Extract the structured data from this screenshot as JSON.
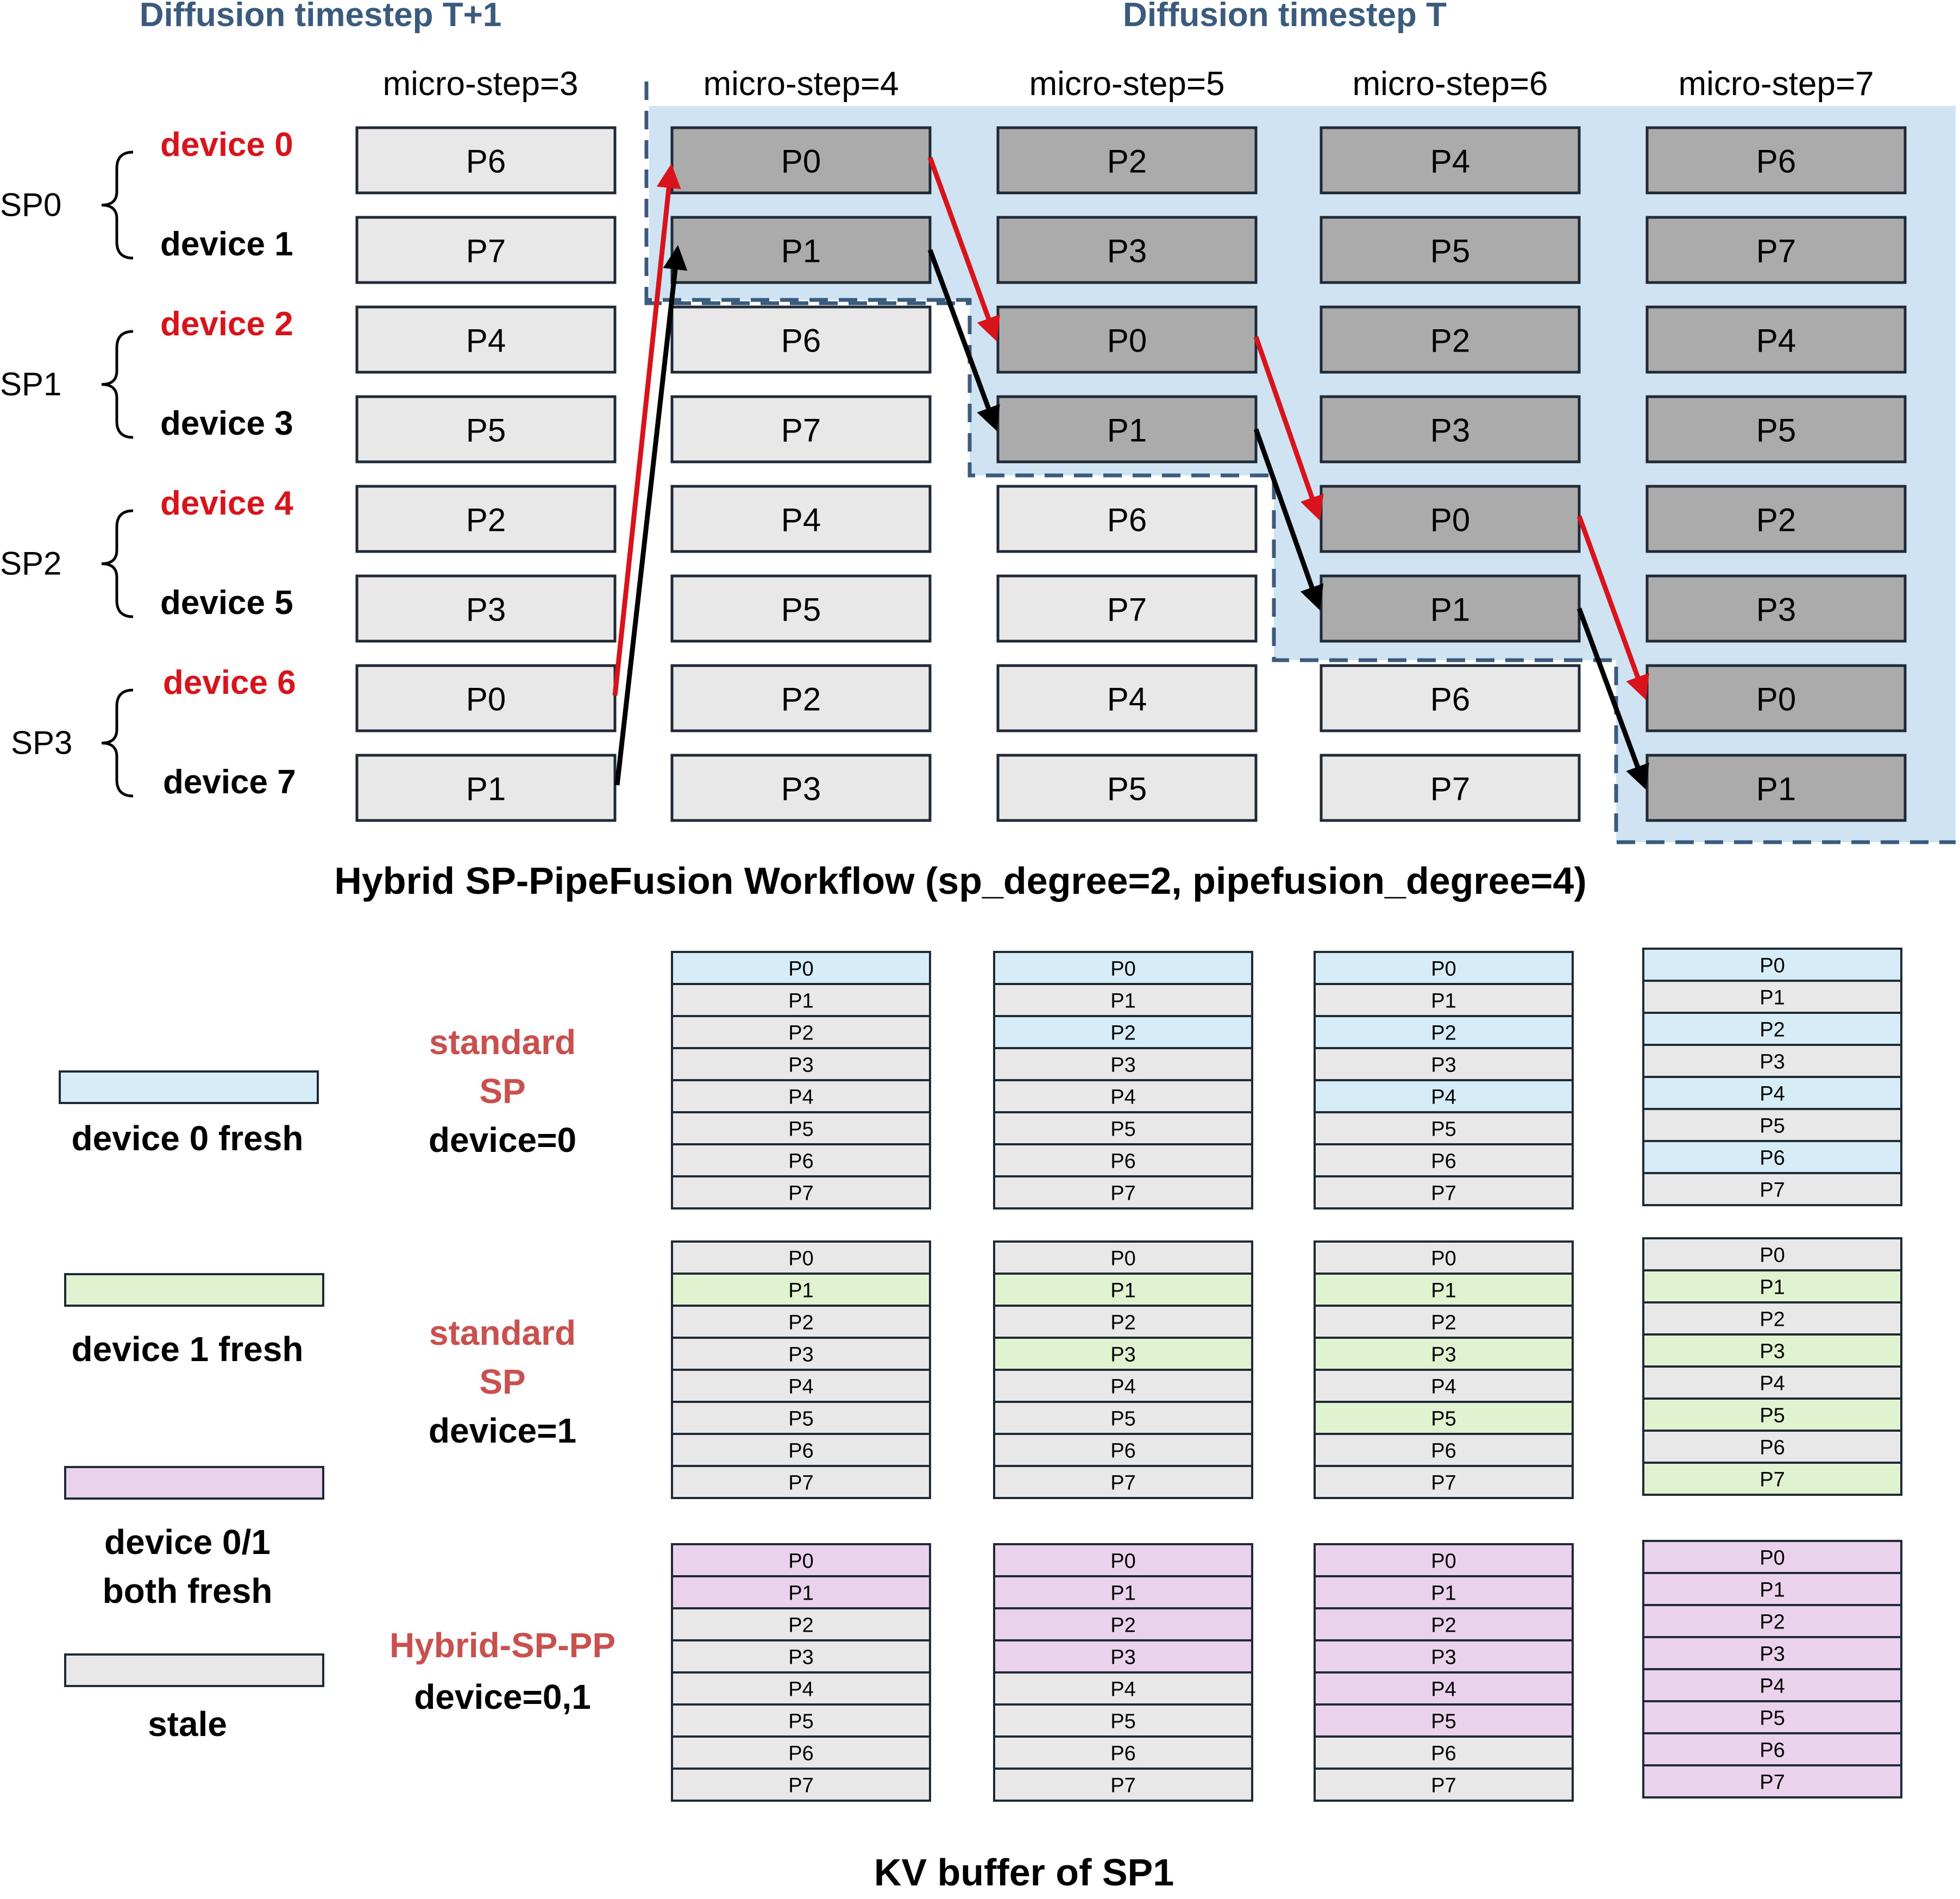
{
  "colors": {
    "highlight": "#cfe3f2",
    "dashed_outline": "#3b5b7e",
    "stale": "#e8e8e8",
    "active": "#ababab",
    "device0_fresh": "#d6ecf7",
    "device1_fresh": "#e0f2d0",
    "both_fresh": "#ead1ec",
    "red_arrow": "#d9131b",
    "black_arrow": "#000000",
    "red_text": "#d9131b",
    "row_label_red": "#c8504f"
  },
  "timestep_headers": [
    "Diffusion timestep T+1",
    "Diffusion timestep T"
  ],
  "micro_steps": [
    "micro-step=3",
    "micro-step=4",
    "micro-step=5",
    "micro-step=6",
    "micro-step=7"
  ],
  "sp_groups": [
    "SP0",
    "SP1",
    "SP2",
    "SP3"
  ],
  "devices": [
    "device 0",
    "device 1",
    "device 2",
    "device 3",
    "device 4",
    "device 5",
    "device 6",
    "device 7"
  ],
  "workflow_grid": [
    [
      "P6",
      "P0",
      "P2",
      "P4",
      "P6"
    ],
    [
      "P7",
      "P1",
      "P3",
      "P5",
      "P7"
    ],
    [
      "P4",
      "P6",
      "P0",
      "P2",
      "P4"
    ],
    [
      "P5",
      "P7",
      "P1",
      "P3",
      "P5"
    ],
    [
      "P2",
      "P4",
      "P6",
      "P0",
      "P2"
    ],
    [
      "P3",
      "P5",
      "P7",
      "P1",
      "P3"
    ],
    [
      "P0",
      "P2",
      "P4",
      "P6",
      "P0"
    ],
    [
      "P1",
      "P3",
      "P5",
      "P7",
      "P1"
    ]
  ],
  "workflow_caption": "Hybrid SP-PipeFusion Workflow (sp_degree=2, pipefusion_degree=4)",
  "kv_patches": [
    "P0",
    "P1",
    "P2",
    "P3",
    "P4",
    "P5",
    "P6",
    "P7"
  ],
  "kv_rows": [
    {
      "label_lines": [
        "standard",
        "SP",
        "device=0"
      ],
      "fresh": "device0_fresh",
      "fresh_sets": [
        [
          "P0"
        ],
        [
          "P0",
          "P2"
        ],
        [
          "P0",
          "P2",
          "P4"
        ],
        [
          "P0",
          "P2",
          "P4",
          "P6"
        ]
      ]
    },
    {
      "label_lines": [
        "standard",
        "SP",
        "device=1"
      ],
      "fresh": "device1_fresh",
      "fresh_sets": [
        [
          "P1"
        ],
        [
          "P1",
          "P3"
        ],
        [
          "P1",
          "P3",
          "P5"
        ],
        [
          "P1",
          "P3",
          "P5",
          "P7"
        ]
      ]
    },
    {
      "label_lines": [
        "Hybrid-SP-PP",
        "device=0,1"
      ],
      "fresh": "both_fresh",
      "fresh_sets": [
        [
          "P0",
          "P1"
        ],
        [
          "P0",
          "P1",
          "P2",
          "P3"
        ],
        [
          "P0",
          "P1",
          "P2",
          "P3",
          "P4",
          "P5"
        ],
        [
          "P0",
          "P1",
          "P2",
          "P3",
          "P4",
          "P5",
          "P6",
          "P7"
        ]
      ]
    }
  ],
  "legend": [
    {
      "label_lines": [
        "device 0 fresh"
      ],
      "color_key": "device0_fresh"
    },
    {
      "label_lines": [
        "device 1 fresh"
      ],
      "color_key": "device1_fresh"
    },
    {
      "label_lines": [
        "device 0/1",
        "both fresh"
      ],
      "color_key": "both_fresh"
    },
    {
      "label_lines": [
        "stale"
      ],
      "color_key": "stale"
    }
  ],
  "kv_caption": "KV buffer of SP1"
}
